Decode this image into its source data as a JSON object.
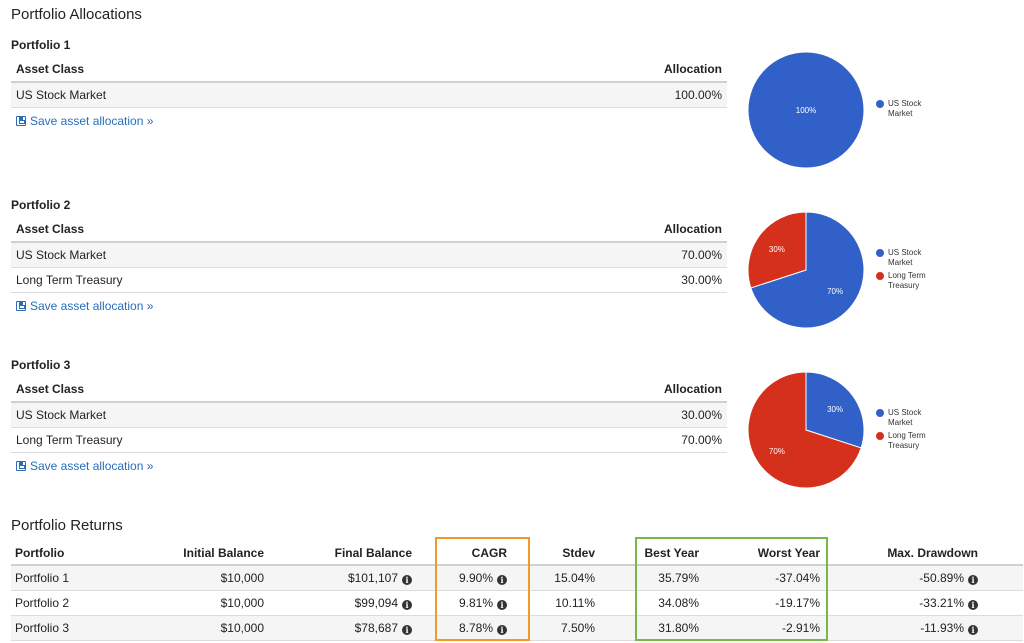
{
  "allocations": {
    "title": "Portfolio Allocations",
    "header": {
      "asset_class": "Asset Class",
      "allocation": "Allocation"
    },
    "save_label": "Save asset allocation »",
    "colors": {
      "us_stock": "#3060c8",
      "treasury": "#d4301b"
    },
    "portfolios": [
      {
        "name": "Portfolio 1",
        "rows": [
          {
            "asset": "US Stock Market",
            "allocation": "100.00%"
          }
        ],
        "pie": {
          "slices": [
            {
              "name": "US Stock Market",
              "value": 100,
              "label": "100%",
              "color": "#3060c8"
            }
          ]
        },
        "legend": [
          {
            "name": "US Stock Market",
            "color": "#3060c8"
          }
        ]
      },
      {
        "name": "Portfolio 2",
        "rows": [
          {
            "asset": "US Stock Market",
            "allocation": "70.00%"
          },
          {
            "asset": "Long Term Treasury",
            "allocation": "30.00%"
          }
        ],
        "pie": {
          "slices": [
            {
              "name": "US Stock Market",
              "value": 70,
              "label": "70%",
              "color": "#3060c8"
            },
            {
              "name": "Long Term Treasury",
              "value": 30,
              "label": "30%",
              "color": "#d4301b"
            }
          ]
        },
        "legend": [
          {
            "name": "US Stock Market",
            "color": "#3060c8"
          },
          {
            "name": "Long Term Treasury",
            "color": "#d4301b"
          }
        ]
      },
      {
        "name": "Portfolio 3",
        "rows": [
          {
            "asset": "US Stock Market",
            "allocation": "30.00%"
          },
          {
            "asset": "Long Term Treasury",
            "allocation": "70.00%"
          }
        ],
        "pie": {
          "slices": [
            {
              "name": "US Stock Market",
              "value": 30,
              "label": "30%",
              "color": "#3060c8"
            },
            {
              "name": "Long Term Treasury",
              "value": 70,
              "label": "70%",
              "color": "#d4301b"
            }
          ]
        },
        "legend": [
          {
            "name": "US Stock Market",
            "color": "#3060c8"
          },
          {
            "name": "Long Term Treasury",
            "color": "#d4301b"
          }
        ]
      }
    ]
  },
  "returns": {
    "title": "Portfolio Returns",
    "columns": [
      "Portfolio",
      "Initial Balance",
      "Final Balance",
      "CAGR",
      "Stdev",
      "Best Year",
      "Worst Year",
      "Max. Drawdown"
    ],
    "rows": [
      {
        "portfolio": "Portfolio 1",
        "initial": "$10,000",
        "final": "$101,107",
        "cagr": "9.90%",
        "stdev": "15.04%",
        "best": "35.79%",
        "worst": "-37.04%",
        "drawdown": "-50.89%"
      },
      {
        "portfolio": "Portfolio 2",
        "initial": "$10,000",
        "final": "$99,094",
        "cagr": "9.81%",
        "stdev": "10.11%",
        "best": "34.08%",
        "worst": "-19.17%",
        "drawdown": "-33.21%"
      },
      {
        "portfolio": "Portfolio 3",
        "initial": "$10,000",
        "final": "$78,687",
        "cagr": "8.78%",
        "stdev": "7.50%",
        "best": "31.80%",
        "worst": "-2.91%",
        "drawdown": "-11.93%"
      }
    ],
    "info_glyph": "i",
    "highlight_colors": {
      "cagr": "#f19a27",
      "best_worst": "#78b74a"
    }
  }
}
